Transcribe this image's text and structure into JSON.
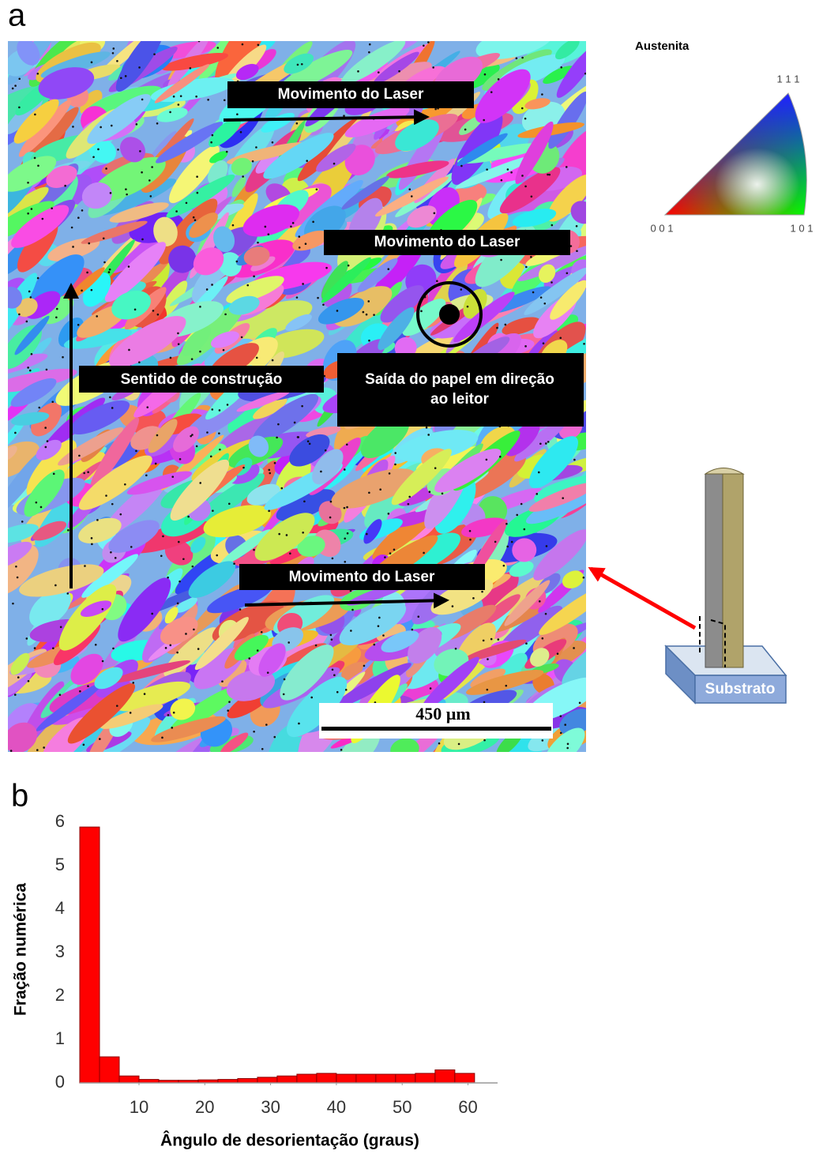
{
  "panel_a": {
    "label": "a",
    "legend_title": "Austenita",
    "ipf_top": "1 1 1",
    "ipf_left": "0 0 1",
    "ipf_right": "1 0 1",
    "laser_top": "Movimento do Laser",
    "laser_middle": "Movimento do Laser",
    "laser_bottom": "Movimento do Laser",
    "build_direction": "Sentido de construção",
    "out_of_page_line1": "Saída do papel em direção",
    "out_of_page_line2": "ao leitor",
    "scale_bar": "450 µm",
    "substrate": "Substrato"
  },
  "panel_b_label": "b",
  "chart_data": {
    "type": "histogram",
    "bins": [
      1,
      4,
      7,
      10,
      13,
      16,
      19,
      22,
      25,
      28,
      31,
      34,
      37,
      40,
      43,
      46,
      49,
      52,
      55,
      58,
      61
    ],
    "values": [
      5.89,
      0.6,
      0.16,
      0.08,
      0.06,
      0.06,
      0.07,
      0.08,
      0.1,
      0.13,
      0.16,
      0.2,
      0.22,
      0.2,
      0.2,
      0.2,
      0.2,
      0.22,
      0.3,
      0.22
    ],
    "color": "#ff0000",
    "x_label": "Ângulo de desorientação (graus)",
    "y_label": "Fração numérica",
    "xlim": [
      1,
      64.5
    ],
    "xticks": [
      10,
      20,
      30,
      40,
      50,
      60
    ],
    "ylim": [
      0,
      6.1
    ],
    "yticks": [
      0,
      1,
      2,
      3,
      4,
      5,
      6
    ],
    "grid": false
  }
}
